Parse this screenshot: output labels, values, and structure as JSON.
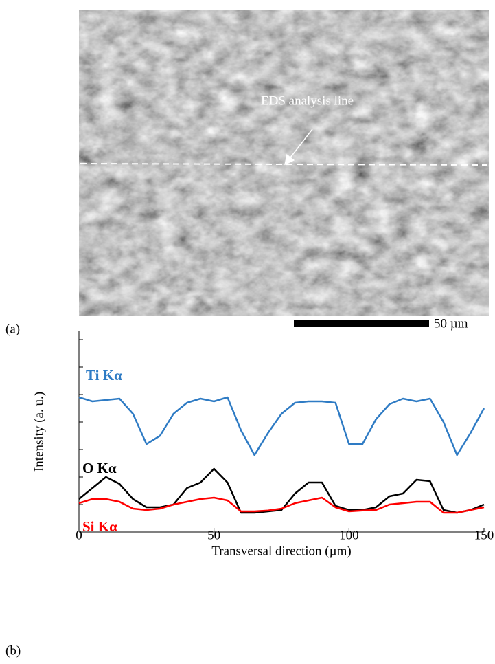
{
  "image": {
    "panel_label": "(a)",
    "annotation": "EDS analysis line",
    "scale_bar": "50 µm"
  },
  "chart_data": {
    "type": "line",
    "panel_label": "(b)",
    "xlabel": "Transversal direction (µm)",
    "ylabel": "Intensity (a. u.)",
    "x": [
      0,
      5,
      10,
      15,
      20,
      25,
      30,
      35,
      40,
      45,
      50,
      55,
      60,
      65,
      70,
      75,
      80,
      85,
      90,
      95,
      100,
      105,
      110,
      115,
      120,
      125,
      130,
      135,
      140,
      145,
      150
    ],
    "series": [
      {
        "name": "Ti Kα",
        "color": "#2e7bc4",
        "values": [
          4.9,
          4.75,
          4.8,
          4.85,
          4.3,
          3.2,
          3.5,
          4.3,
          4.7,
          4.85,
          4.75,
          4.9,
          3.7,
          2.8,
          3.6,
          4.3,
          4.7,
          4.75,
          4.75,
          4.7,
          3.2,
          3.2,
          4.1,
          4.65,
          4.85,
          4.75,
          4.85,
          4.0,
          2.8,
          3.6,
          4.5
        ]
      },
      {
        "name": "O Kα",
        "color": "#000000",
        "values": [
          1.2,
          1.6,
          2.0,
          1.75,
          1.2,
          0.9,
          0.9,
          1.0,
          1.6,
          1.8,
          2.3,
          1.8,
          0.7,
          0.7,
          0.75,
          0.8,
          1.4,
          1.8,
          1.8,
          0.95,
          0.8,
          0.8,
          0.9,
          1.3,
          1.4,
          1.9,
          1.85,
          0.8,
          0.7,
          0.8,
          1.0
        ]
      },
      {
        "name": "Si Kα",
        "color": "#ff0000",
        "values": [
          1.05,
          1.2,
          1.2,
          1.1,
          0.85,
          0.8,
          0.85,
          1.0,
          1.1,
          1.2,
          1.25,
          1.15,
          0.75,
          0.75,
          0.78,
          0.85,
          1.05,
          1.15,
          1.25,
          0.9,
          0.75,
          0.78,
          0.8,
          1.0,
          1.05,
          1.1,
          1.1,
          0.7,
          0.7,
          0.8,
          0.9
        ]
      }
    ],
    "xlim": [
      0,
      150
    ],
    "xticks": [
      0,
      50,
      100,
      150
    ],
    "ylim": [
      0,
      7.3
    ],
    "yticks": [
      0,
      1,
      2,
      3,
      4,
      5,
      6,
      7
    ],
    "ytick_labels": false
  }
}
